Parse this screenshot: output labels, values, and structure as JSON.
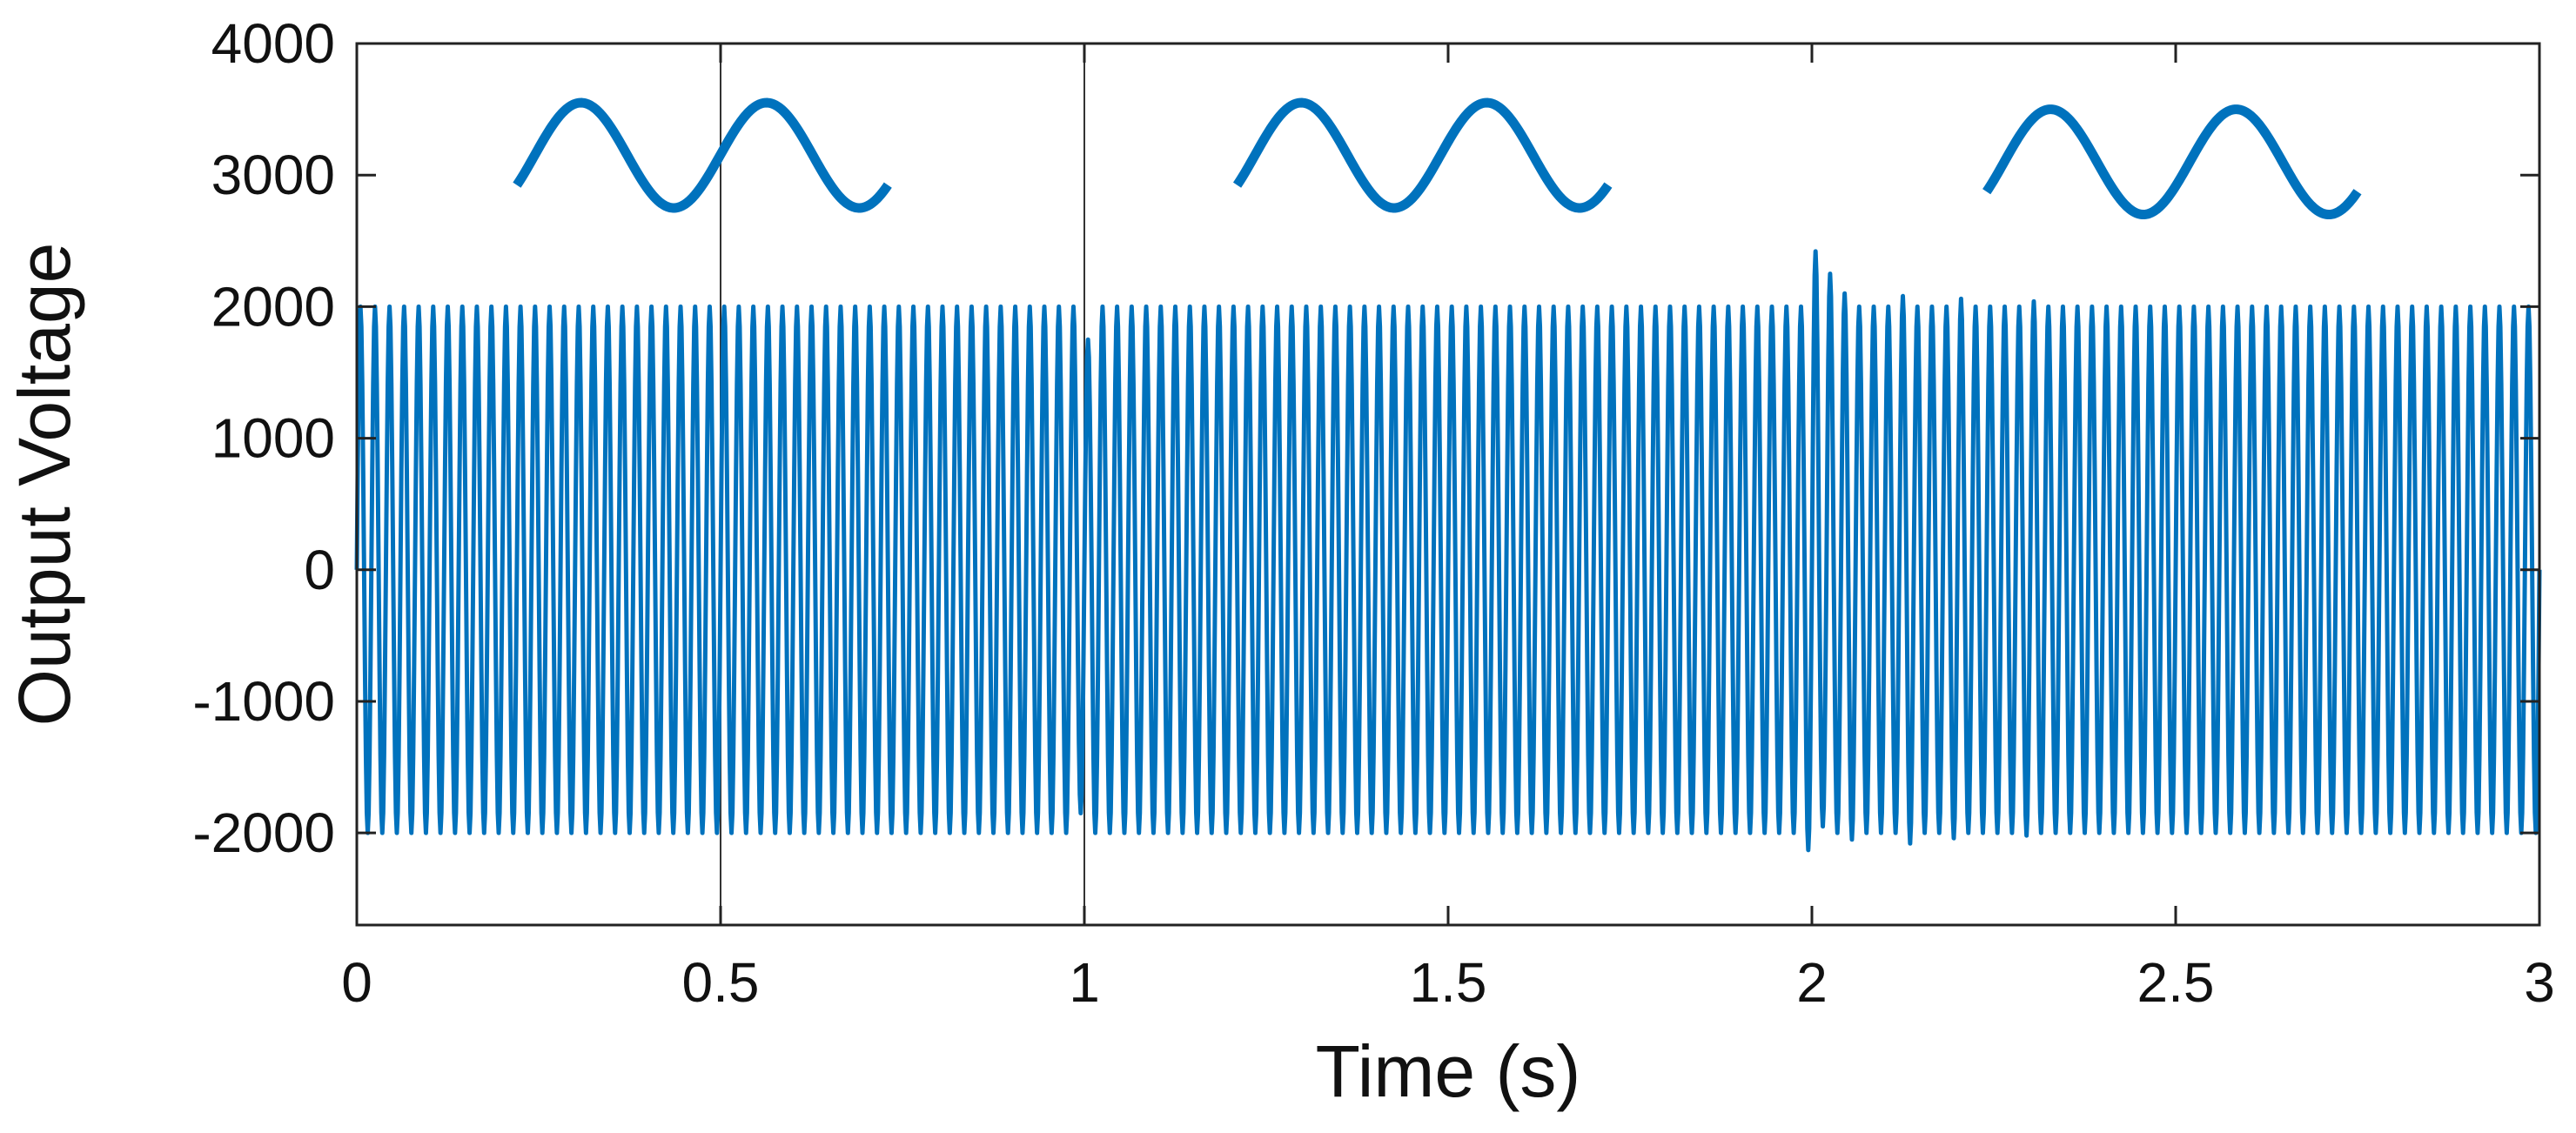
{
  "chart_data": {
    "type": "line",
    "title": "",
    "xlabel": "Time (s)",
    "ylabel": "Output Voltage",
    "xlim": [
      0,
      3
    ],
    "ylim": [
      -2700,
      4000
    ],
    "x_ticks": [
      0,
      0.5,
      1,
      1.5,
      2,
      2.5,
      3
    ],
    "x_tick_labels": [
      "0",
      "0.5",
      "1",
      "1.5",
      "2",
      "2.5",
      "3"
    ],
    "y_ticks": [
      4000,
      3000,
      2000,
      1000,
      0,
      -1000,
      -2000
    ],
    "y_tick_labels": [
      "4000",
      "3000",
      "2000",
      "1000",
      "0",
      "-1000",
      "-2000"
    ],
    "grid": false,
    "legend": "none",
    "line_color": "#0072BD",
    "markers_x": [
      0.5,
      1
    ],
    "series": [
      {
        "waveform": "sinusoid",
        "frequency_hz": 50,
        "amplitude": 2000,
        "x_start": 0,
        "x_end": 3,
        "disturbances": [
          {
            "x": 1.0,
            "peak": 1750,
            "trough": -1850
          },
          {
            "x": 2.0,
            "peak": 2420,
            "trough": -2130
          },
          {
            "x": 2.02,
            "peak": 2250,
            "trough": -1950
          },
          {
            "x": 2.05,
            "peak": 2100,
            "trough": -2050
          },
          {
            "x": 2.13,
            "peak": 2080,
            "trough": -2080
          },
          {
            "x": 2.2,
            "peak": 2060,
            "trough": -2040
          },
          {
            "x": 2.3,
            "peak": 2040,
            "trough": -2020
          }
        ]
      }
    ],
    "annotations": [
      {
        "type": "sine-glyph",
        "x_start": 0.22,
        "x_end": 0.73,
        "y_center": 3150,
        "amplitude": 400,
        "cycles": 2
      },
      {
        "type": "sine-glyph",
        "x_start": 1.21,
        "x_end": 1.72,
        "y_center": 3150,
        "amplitude": 400,
        "cycles": 2
      },
      {
        "type": "sine-glyph",
        "x_start": 2.24,
        "x_end": 2.75,
        "y_center": 3100,
        "amplitude": 400,
        "cycles": 2
      }
    ]
  }
}
